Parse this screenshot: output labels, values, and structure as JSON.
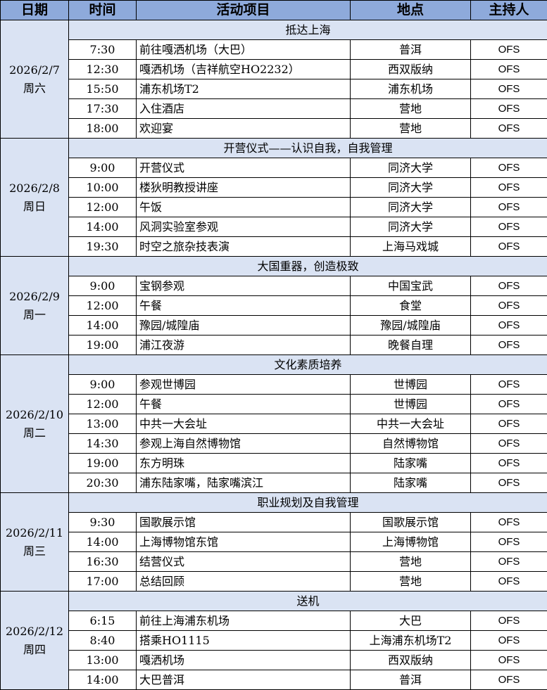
{
  "headers": [
    "日期",
    "时间",
    "活动项目",
    "地点",
    "主持人"
  ],
  "colors": {
    "header_bg": "#8eaadb",
    "section_bg": "#dae3f3"
  },
  "days": [
    {
      "date": "2026/2/7",
      "weekday": "周六",
      "section": "抵达上海",
      "rows": [
        [
          "7:30",
          "前往嘎洒机场（大巴）",
          "普洱",
          "OFS"
        ],
        [
          "12:30",
          "嘎洒机场（吉祥航空HO2232）",
          "西双版纳",
          "OFS"
        ],
        [
          "15:50",
          "浦东机场T2",
          "浦东机场",
          "OFS"
        ],
        [
          "17:30",
          "入住酒店",
          "营地",
          "OFS"
        ],
        [
          "18:00",
          "欢迎宴",
          "营地",
          "OFS"
        ]
      ]
    },
    {
      "date": "2026/2/8",
      "weekday": "周日",
      "section": "开营仪式——认识自我，自我管理",
      "rows": [
        [
          "9:00",
          "开营仪式",
          "同济大学",
          "OFS"
        ],
        [
          "10:00",
          "楼狄明教授讲座",
          "同济大学",
          "OFS"
        ],
        [
          "12:00",
          "午饭",
          "同济大学",
          "OFS"
        ],
        [
          "14:00",
          "风洞实验室参观",
          "同济大学",
          "OFS"
        ],
        [
          "19:30",
          "时空之旅杂技表演",
          "上海马戏城",
          "OFS"
        ]
      ]
    },
    {
      "date": "2026/2/9",
      "weekday": "周一",
      "section": "大国重器，创造极致",
      "rows": [
        [
          "9:00",
          "宝钢参观",
          "中国宝武",
          "OFS"
        ],
        [
          "12:00",
          "午餐",
          "食堂",
          "OFS"
        ],
        [
          "14:00",
          "豫园/城隍庙",
          "豫园/城隍庙",
          "OFS"
        ],
        [
          "19:00",
          "浦江夜游",
          "晚餐自理",
          "OFS"
        ]
      ]
    },
    {
      "date": "2026/2/10",
      "weekday": "周二",
      "section": "文化素质培养",
      "rows": [
        [
          "9:00",
          "参观世博园",
          "世博园",
          "OFS"
        ],
        [
          "12:00",
          "午餐",
          "世博园",
          "OFS"
        ],
        [
          "13:00",
          "中共一大会址",
          "中共一大会址",
          "OFS"
        ],
        [
          "14:30",
          "参观上海自然博物馆",
          "自然博物馆",
          "OFS"
        ],
        [
          "19:00",
          "东方明珠",
          "陆家嘴",
          "OFS"
        ],
        [
          "20:30",
          "浦东陆家嘴，陆家嘴滨江",
          "陆家嘴",
          "OFS"
        ]
      ]
    },
    {
      "date": "2026/2/11",
      "weekday": "周三",
      "section": "职业规划及自我管理",
      "rows": [
        [
          "9:30",
          "国歌展示馆",
          "国歌展示馆",
          "OFS"
        ],
        [
          "14:00",
          "上海博物馆东馆",
          "上海博物馆",
          "OFS"
        ],
        [
          "16:30",
          "结营仪式",
          "营地",
          "OFS"
        ],
        [
          "17:00",
          "总结回顾",
          "营地",
          "OFS"
        ]
      ]
    },
    {
      "date": "2026/2/12",
      "weekday": "周四",
      "section": "送机",
      "rows": [
        [
          "6:15",
          "前往上海浦东机场",
          "大巴",
          "OFS"
        ],
        [
          "8:40",
          "搭乘HO1115",
          "上海浦东机场T2",
          "OFS"
        ],
        [
          "13:00",
          "嘎洒机场",
          "西双版纳",
          "OFS"
        ],
        [
          "14:00",
          "大巴普洱",
          "普洱",
          "OFS"
        ]
      ]
    }
  ]
}
